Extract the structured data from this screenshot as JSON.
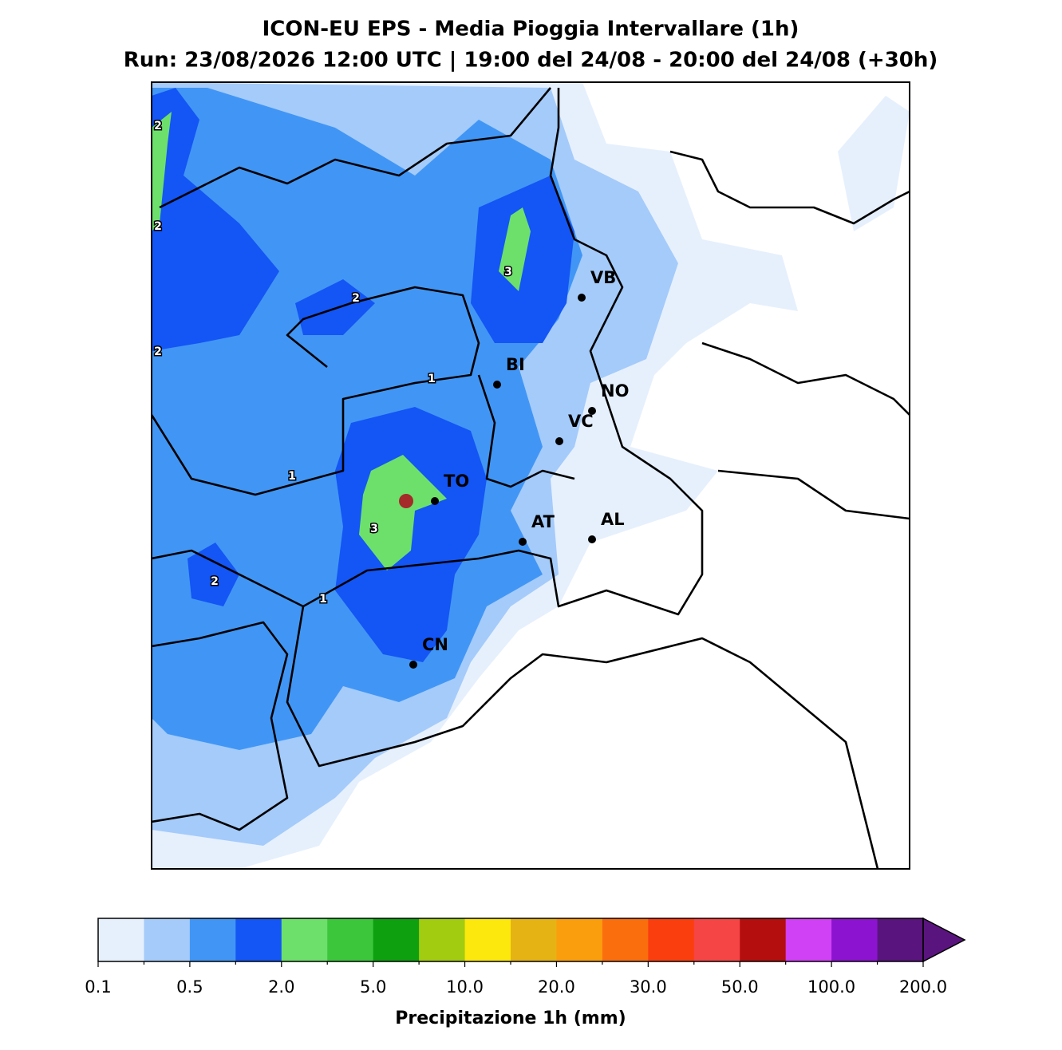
{
  "header": {
    "title": "ICON-EU EPS - Media Pioggia Intervallare (1h)",
    "subtitle": "Run: 23/08/2026 12:00 UTC | 19:00 del 24/08 - 20:00 del 24/08 (+30h)"
  },
  "cities": [
    {
      "label": "VB"
    },
    {
      "label": "BI"
    },
    {
      "label": "NO"
    },
    {
      "label": "VC"
    },
    {
      "label": "TO"
    },
    {
      "label": "AT"
    },
    {
      "label": "AL"
    },
    {
      "label": "CN"
    }
  ],
  "contour_labels": [
    "2",
    "2",
    "2",
    "2",
    "2",
    "3",
    "3",
    "1",
    "1",
    "1"
  ],
  "colorbar": {
    "label": "Precipitazione 1h (mm)",
    "colors": [
      "#e6f0fd",
      "#a4cbfa",
      "#4196f5",
      "#1455f5",
      "#6de06c",
      "#3cc63c",
      "#0ea00e",
      "#a2cc10",
      "#fce80c",
      "#e5b414",
      "#fb9e0e",
      "#fb6e0e",
      "#fb3e0e",
      "#f54545",
      "#b40e0e",
      "#d040f5",
      "#8c14d0",
      "#5a147e"
    ],
    "tick_labels": [
      "0.1",
      "0.5",
      "2.0",
      "5.0",
      "10.0",
      "20.0",
      "30.0",
      "50.0",
      "100.0",
      "200.0"
    ]
  }
}
